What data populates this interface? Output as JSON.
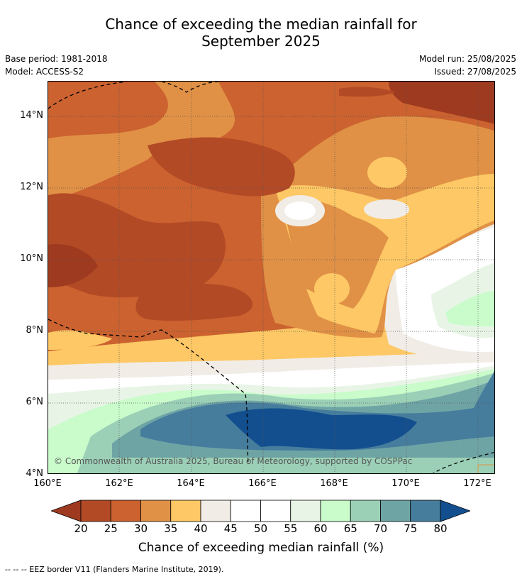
{
  "title_line1": "Chance of exceeding the median rainfall for",
  "title_line2": "September 2025",
  "base_period": "Base period: 1981-2018",
  "model": "Model: ACCESS-S2",
  "model_run": "Model run: 25/08/2025",
  "issued": "Issued: 27/08/2025",
  "copyright": "© Commonwealth of Australia 2025, Bureau of Meteorology, supported by COSPPac",
  "y_ticks": [
    "14°N",
    "12°N",
    "10°N",
    "8°N",
    "6°N",
    "4°N"
  ],
  "x_ticks": [
    "160°E",
    "162°E",
    "164°E",
    "166°E",
    "168°E",
    "170°E",
    "172°E"
  ],
  "colorbar": {
    "labels": [
      "20",
      "25",
      "30",
      "35",
      "40",
      "45",
      "50",
      "55",
      "60",
      "65",
      "70",
      "75",
      "80"
    ],
    "colors": [
      "#9e3a1f",
      "#b34a26",
      "#cb622f",
      "#e09146",
      "#fdc865",
      "#f1ece6",
      "#ffffff",
      "#ffffff",
      "#e8f5e6",
      "#c9fbcb",
      "#9bd0b7",
      "#6fa4a5",
      "#467d9d",
      "#134f8e"
    ],
    "title": "Chance of exceeding median rainfall (%)"
  },
  "footer": "--  --  -- EEZ border V11 (Flanders Marine Institute, 2019)."
}
